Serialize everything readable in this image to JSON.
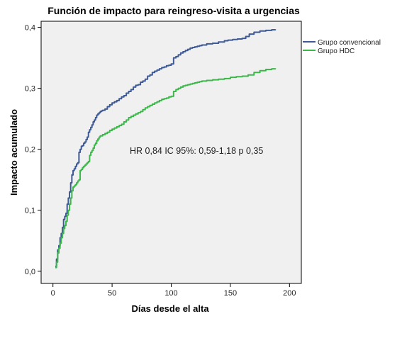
{
  "chart_data": {
    "type": "line",
    "title": "Función de impacto para reingreso-visita a urgencias",
    "xlabel": "Días desde el alta",
    "ylabel": "Impacto acumulado",
    "xlim": [
      -10,
      210
    ],
    "ylim": [
      -0.02,
      0.41
    ],
    "x_ticks": [
      0,
      50,
      100,
      150,
      200
    ],
    "y_ticks": [
      0.0,
      0.1,
      0.2,
      0.3,
      0.4
    ],
    "x_tick_labels": [
      "0",
      "50",
      "100",
      "150",
      "200"
    ],
    "y_tick_labels": [
      "0,0",
      "0,1",
      "0,2",
      "0,3",
      "0,4"
    ],
    "grid": false,
    "legend_position": "top-right outside",
    "background_color": "#f0f0f0",
    "annotation": "HR 0,84 IC 95%: 0,59-1,18 p 0,35",
    "series": [
      {
        "name": "Grupo convencional",
        "color": "#3d5a96",
        "x": [
          2,
          3,
          4,
          5,
          6,
          7,
          8,
          9,
          10,
          11,
          12,
          13,
          14,
          15,
          16,
          17,
          18,
          19,
          20,
          21,
          22,
          23,
          24,
          25,
          26,
          27,
          28,
          29,
          30,
          31,
          32,
          33,
          34,
          35,
          36,
          37,
          38,
          39,
          40,
          41,
          42,
          44,
          46,
          48,
          50,
          52,
          54,
          56,
          58,
          60,
          62,
          64,
          66,
          68,
          70,
          72,
          74,
          76,
          78,
          80,
          82,
          84,
          86,
          88,
          90,
          92,
          94,
          96,
          98,
          100,
          102,
          104,
          106,
          108,
          110,
          112,
          114,
          116,
          118,
          120,
          122,
          124,
          126,
          130,
          135,
          140,
          145,
          148,
          152,
          156,
          160,
          163,
          166,
          170,
          175,
          180,
          185,
          188
        ],
        "y": [
          0.008,
          0.02,
          0.035,
          0.042,
          0.055,
          0.062,
          0.072,
          0.085,
          0.09,
          0.095,
          0.11,
          0.12,
          0.13,
          0.145,
          0.158,
          0.165,
          0.168,
          0.172,
          0.176,
          0.178,
          0.195,
          0.2,
          0.205,
          0.206,
          0.21,
          0.212,
          0.216,
          0.22,
          0.228,
          0.232,
          0.236,
          0.24,
          0.245,
          0.248,
          0.252,
          0.256,
          0.258,
          0.26,
          0.262,
          0.263,
          0.264,
          0.266,
          0.27,
          0.273,
          0.276,
          0.278,
          0.28,
          0.283,
          0.286,
          0.288,
          0.292,
          0.295,
          0.298,
          0.302,
          0.305,
          0.306,
          0.31,
          0.312,
          0.315,
          0.32,
          0.322,
          0.326,
          0.328,
          0.33,
          0.332,
          0.334,
          0.335,
          0.337,
          0.338,
          0.34,
          0.35,
          0.352,
          0.355,
          0.358,
          0.36,
          0.362,
          0.364,
          0.366,
          0.367,
          0.368,
          0.369,
          0.37,
          0.371,
          0.373,
          0.374,
          0.376,
          0.378,
          0.379,
          0.38,
          0.381,
          0.382,
          0.385,
          0.389,
          0.392,
          0.394,
          0.395,
          0.396,
          0.397
        ]
      },
      {
        "name": "Grupo HDC",
        "color": "#3cb84a",
        "x": [
          2,
          3,
          4,
          5,
          6,
          7,
          8,
          9,
          10,
          11,
          12,
          13,
          14,
          15,
          16,
          17,
          18,
          19,
          20,
          21,
          22,
          23,
          24,
          25,
          26,
          27,
          28,
          29,
          30,
          31,
          32,
          33,
          34,
          35,
          36,
          37,
          38,
          39,
          40,
          42,
          44,
          46,
          48,
          50,
          52,
          54,
          56,
          58,
          60,
          62,
          64,
          66,
          68,
          70,
          72,
          74,
          76,
          78,
          80,
          82,
          84,
          86,
          88,
          90,
          92,
          94,
          96,
          98,
          100,
          102,
          104,
          106,
          108,
          110,
          112,
          114,
          116,
          118,
          120,
          122,
          124,
          126,
          130,
          135,
          140,
          145,
          150,
          155,
          160,
          165,
          170,
          175,
          180,
          185,
          188
        ],
        "y": [
          0.006,
          0.015,
          0.03,
          0.038,
          0.046,
          0.055,
          0.062,
          0.07,
          0.075,
          0.082,
          0.092,
          0.1,
          0.11,
          0.12,
          0.132,
          0.138,
          0.14,
          0.142,
          0.145,
          0.148,
          0.15,
          0.165,
          0.167,
          0.17,
          0.172,
          0.174,
          0.176,
          0.178,
          0.18,
          0.19,
          0.195,
          0.198,
          0.202,
          0.207,
          0.21,
          0.214,
          0.217,
          0.22,
          0.222,
          0.224,
          0.226,
          0.228,
          0.231,
          0.233,
          0.235,
          0.237,
          0.239,
          0.241,
          0.245,
          0.248,
          0.252,
          0.254,
          0.256,
          0.258,
          0.26,
          0.262,
          0.265,
          0.268,
          0.27,
          0.272,
          0.274,
          0.276,
          0.278,
          0.28,
          0.282,
          0.283,
          0.284,
          0.286,
          0.287,
          0.295,
          0.298,
          0.3,
          0.302,
          0.304,
          0.305,
          0.306,
          0.307,
          0.308,
          0.309,
          0.31,
          0.311,
          0.312,
          0.313,
          0.314,
          0.315,
          0.316,
          0.318,
          0.319,
          0.32,
          0.322,
          0.326,
          0.329,
          0.331,
          0.332,
          0.333
        ]
      }
    ]
  }
}
